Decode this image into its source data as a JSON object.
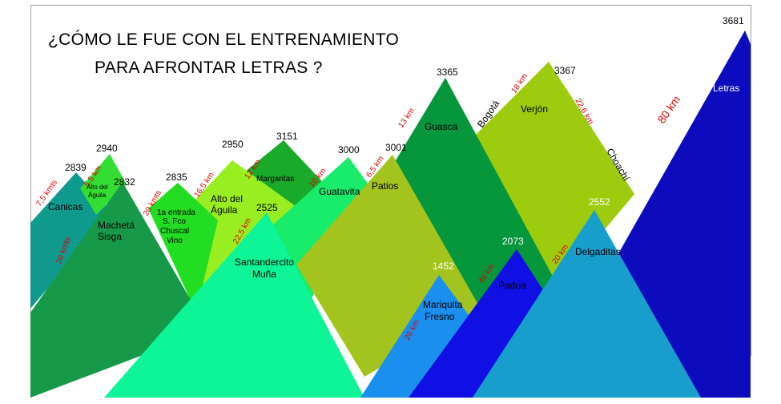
{
  "title": {
    "line1": "¿CÓMO LE FUE CON EL  ENTRENAMIENTO",
    "line2": "PARA AFRONTAR LETRAS ?"
  },
  "peaks": [
    {
      "id": "canicas",
      "altitude": "2839",
      "name": "Canicas",
      "color": "#0f9a8e"
    },
    {
      "id": "alto-aguila-1",
      "altitude": "2940",
      "name": "Alto del Águila",
      "color": "#33dd33"
    },
    {
      "id": "macheta-sisga",
      "altitude": "2832",
      "name": "Machetá Sisga",
      "color": "#169a4a"
    },
    {
      "id": "primera-entrada",
      "altitude": "2835",
      "name": "1a entrada S. Fco Chuscal Vino",
      "color": "#22dd22"
    },
    {
      "id": "alto-aguila-2",
      "altitude": "2950",
      "name": "Alto del Águila",
      "color": "#99ee22"
    },
    {
      "id": "margaritas",
      "altitude": "3151",
      "name": "Margaritas",
      "color": "#1aaa2a"
    },
    {
      "id": "santandercito",
      "altitude": "2525",
      "name": "Santandercito Muña",
      "color": "#0df596"
    },
    {
      "id": "guatavita",
      "altitude": "3000",
      "name": "Guatavita",
      "color": "#19eb6a"
    },
    {
      "id": "patios",
      "altitude": "3001",
      "name": "Patios",
      "color": "#a3c41e"
    },
    {
      "id": "guasca",
      "altitude": "3365",
      "name": "Guasca",
      "color": "#06963c"
    },
    {
      "id": "verjon",
      "altitude": "3367",
      "name": "Verjón",
      "color": "#9dcb0d"
    },
    {
      "id": "mariquita",
      "altitude": "1452",
      "name": "Mariquita Fresno",
      "color": "#1a8fee"
    },
    {
      "id": "padua",
      "altitude": "2073",
      "name": "Padua",
      "color": "#1010e4"
    },
    {
      "id": "delgaditas",
      "altitude": "2552",
      "name": "Delgaditas",
      "color": "#189ecd"
    },
    {
      "id": "letras",
      "altitude": "3681",
      "name": "Letras",
      "color": "#0c0cbe"
    }
  ],
  "distances": [
    "7,5 kmts",
    "5,5 km",
    "20 kmts",
    "20 kmts",
    "16,5 km",
    "12 km",
    "22,5 km",
    "10 km",
    "6,5 km",
    "13 km",
    "18 km",
    "22,6 km",
    "80 km",
    "26 km",
    "46 km",
    "20 km"
  ],
  "place_labels": [
    "Bogotá",
    "Choachí"
  ]
}
